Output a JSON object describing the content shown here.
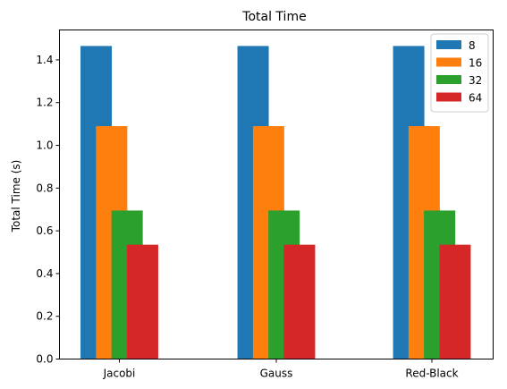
{
  "chart_data": {
    "type": "bar",
    "title": "Total Time",
    "xlabel": "",
    "ylabel": "Total Time (s)",
    "categories": [
      "Jacobi",
      "Gauss",
      "Red-Black"
    ],
    "series": [
      {
        "name": "8",
        "color": "#1f77b4",
        "values": [
          1.465,
          1.465,
          1.465
        ]
      },
      {
        "name": "16",
        "color": "#ff7f0e",
        "values": [
          1.09,
          1.09,
          1.09
        ]
      },
      {
        "name": "32",
        "color": "#2ca02c",
        "values": [
          0.695,
          0.695,
          0.695
        ]
      },
      {
        "name": "64",
        "color": "#d62728",
        "values": [
          0.535,
          0.535,
          0.535
        ]
      }
    ],
    "ylim": [
      0,
      1.54
    ],
    "yticks": [
      "0.0",
      "0.2",
      "0.4",
      "0.6",
      "0.8",
      "1.0",
      "1.2",
      "1.4"
    ],
    "grid": false,
    "legend_position": "top-right"
  }
}
